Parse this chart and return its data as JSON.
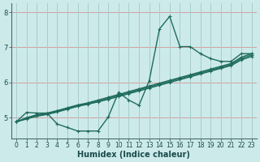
{
  "xlabel": "Humidex (Indice chaleur)",
  "bg_color": "#cdeaea",
  "line_color": "#1e6b5e",
  "hgrid_color": "#d4a0a0",
  "vgrid_color": "#a8cccc",
  "axis_color": "#4a6a6a",
  "tick_color": "#1a4a4a",
  "xlim": [
    -0.5,
    23.5
  ],
  "ylim": [
    4.4,
    8.25
  ],
  "yticks": [
    5,
    6,
    7,
    8
  ],
  "xticks": [
    0,
    1,
    2,
    3,
    4,
    5,
    6,
    7,
    8,
    9,
    10,
    11,
    12,
    13,
    14,
    15,
    16,
    17,
    18,
    19,
    20,
    21,
    22,
    23
  ],
  "main_curve": {
    "x": [
      0,
      1,
      2,
      3,
      4,
      5,
      6,
      7,
      8,
      9,
      10,
      11,
      12,
      13,
      14,
      15,
      16,
      17,
      18,
      19,
      20,
      21,
      22,
      23
    ],
    "y": [
      4.88,
      5.15,
      5.13,
      5.13,
      4.82,
      4.72,
      4.62,
      4.62,
      4.62,
      5.02,
      5.72,
      5.5,
      5.35,
      6.05,
      7.52,
      7.88,
      7.02,
      7.02,
      6.82,
      6.68,
      6.6,
      6.6,
      6.82,
      6.82
    ]
  },
  "diag_curves": [
    {
      "x": [
        0,
        1,
        2,
        3,
        4,
        5,
        6,
        7,
        8,
        9,
        10,
        11,
        12,
        13,
        14,
        15,
        16,
        17,
        18,
        19,
        20,
        21,
        22,
        23
      ],
      "y": [
        4.88,
        5.0,
        5.08,
        5.13,
        5.2,
        5.28,
        5.36,
        5.42,
        5.5,
        5.58,
        5.66,
        5.74,
        5.82,
        5.9,
        5.98,
        6.06,
        6.14,
        6.22,
        6.3,
        6.38,
        6.46,
        6.54,
        6.72,
        6.82
      ]
    },
    {
      "x": [
        0,
        1,
        2,
        3,
        4,
        5,
        6,
        7,
        8,
        9,
        10,
        11,
        12,
        13,
        14,
        15,
        16,
        17,
        18,
        19,
        20,
        21,
        22,
        23
      ],
      "y": [
        4.88,
        4.98,
        5.06,
        5.11,
        5.18,
        5.26,
        5.34,
        5.4,
        5.47,
        5.55,
        5.63,
        5.71,
        5.79,
        5.87,
        5.95,
        6.03,
        6.11,
        6.19,
        6.27,
        6.35,
        6.43,
        6.51,
        6.68,
        6.78
      ]
    },
    {
      "x": [
        0,
        1,
        2,
        3,
        4,
        5,
        6,
        7,
        8,
        9,
        10,
        11,
        12,
        13,
        14,
        15,
        16,
        17,
        18,
        19,
        20,
        21,
        22,
        23
      ],
      "y": [
        4.88,
        4.96,
        5.04,
        5.09,
        5.16,
        5.24,
        5.32,
        5.38,
        5.45,
        5.52,
        5.6,
        5.68,
        5.76,
        5.84,
        5.92,
        6.0,
        6.08,
        6.16,
        6.24,
        6.32,
        6.4,
        6.48,
        6.64,
        6.74
      ]
    }
  ],
  "markersize": 2.5,
  "linewidth": 1.0,
  "xlabel_fontsize": 7,
  "tick_fontsize": 5.5
}
